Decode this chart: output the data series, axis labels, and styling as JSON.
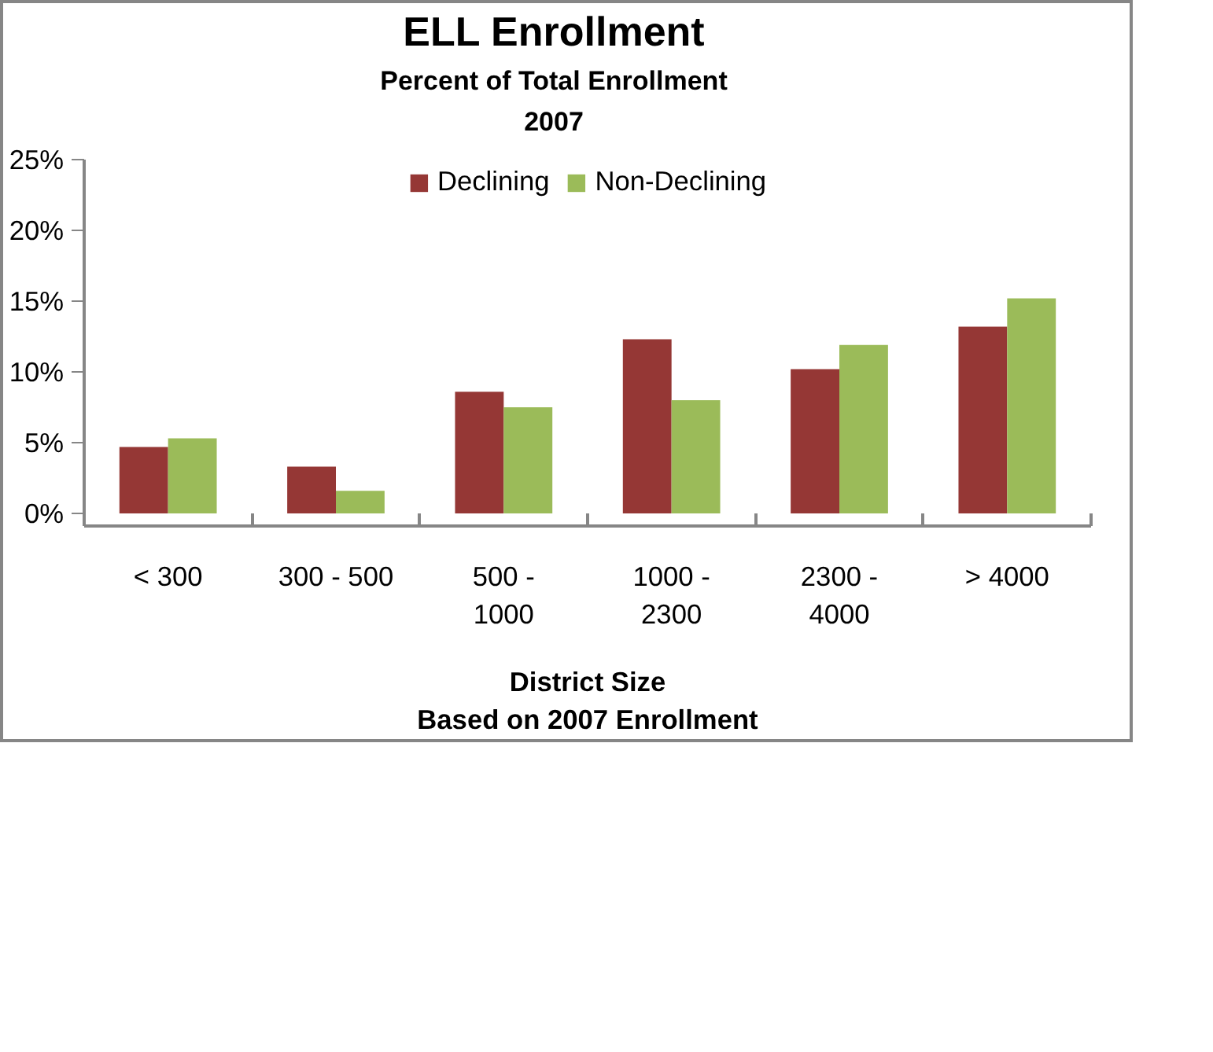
{
  "chart_data": {
    "type": "bar",
    "title": "ELL Enrollment",
    "subtitle": "Percent of Total Enrollment\n2007",
    "xlabel": "District Size\nBased on 2007 Enrollment",
    "categories": [
      "< 300",
      "300 - 500",
      "500 -\n1000",
      "1000 -\n2300",
      "2300 -\n4000",
      "> 4000"
    ],
    "series": [
      {
        "name": "Declining",
        "color": "#953735",
        "values": [
          4.7,
          3.3,
          8.6,
          12.3,
          10.2,
          13.2
        ]
      },
      {
        "name": "Non-Declining",
        "color": "#9bbb59",
        "values": [
          5.3,
          1.6,
          7.5,
          8.0,
          11.9,
          15.2
        ]
      }
    ],
    "ylim": [
      0,
      25
    ],
    "yticks": [
      {
        "value": 0,
        "label": "0%"
      },
      {
        "value": 5,
        "label": "5%"
      },
      {
        "value": 10,
        "label": "10%"
      },
      {
        "value": 15,
        "label": "15%"
      },
      {
        "value": 20,
        "label": "20%"
      },
      {
        "value": 25,
        "label": "25%"
      }
    ],
    "grid": false,
    "legend": "top"
  }
}
